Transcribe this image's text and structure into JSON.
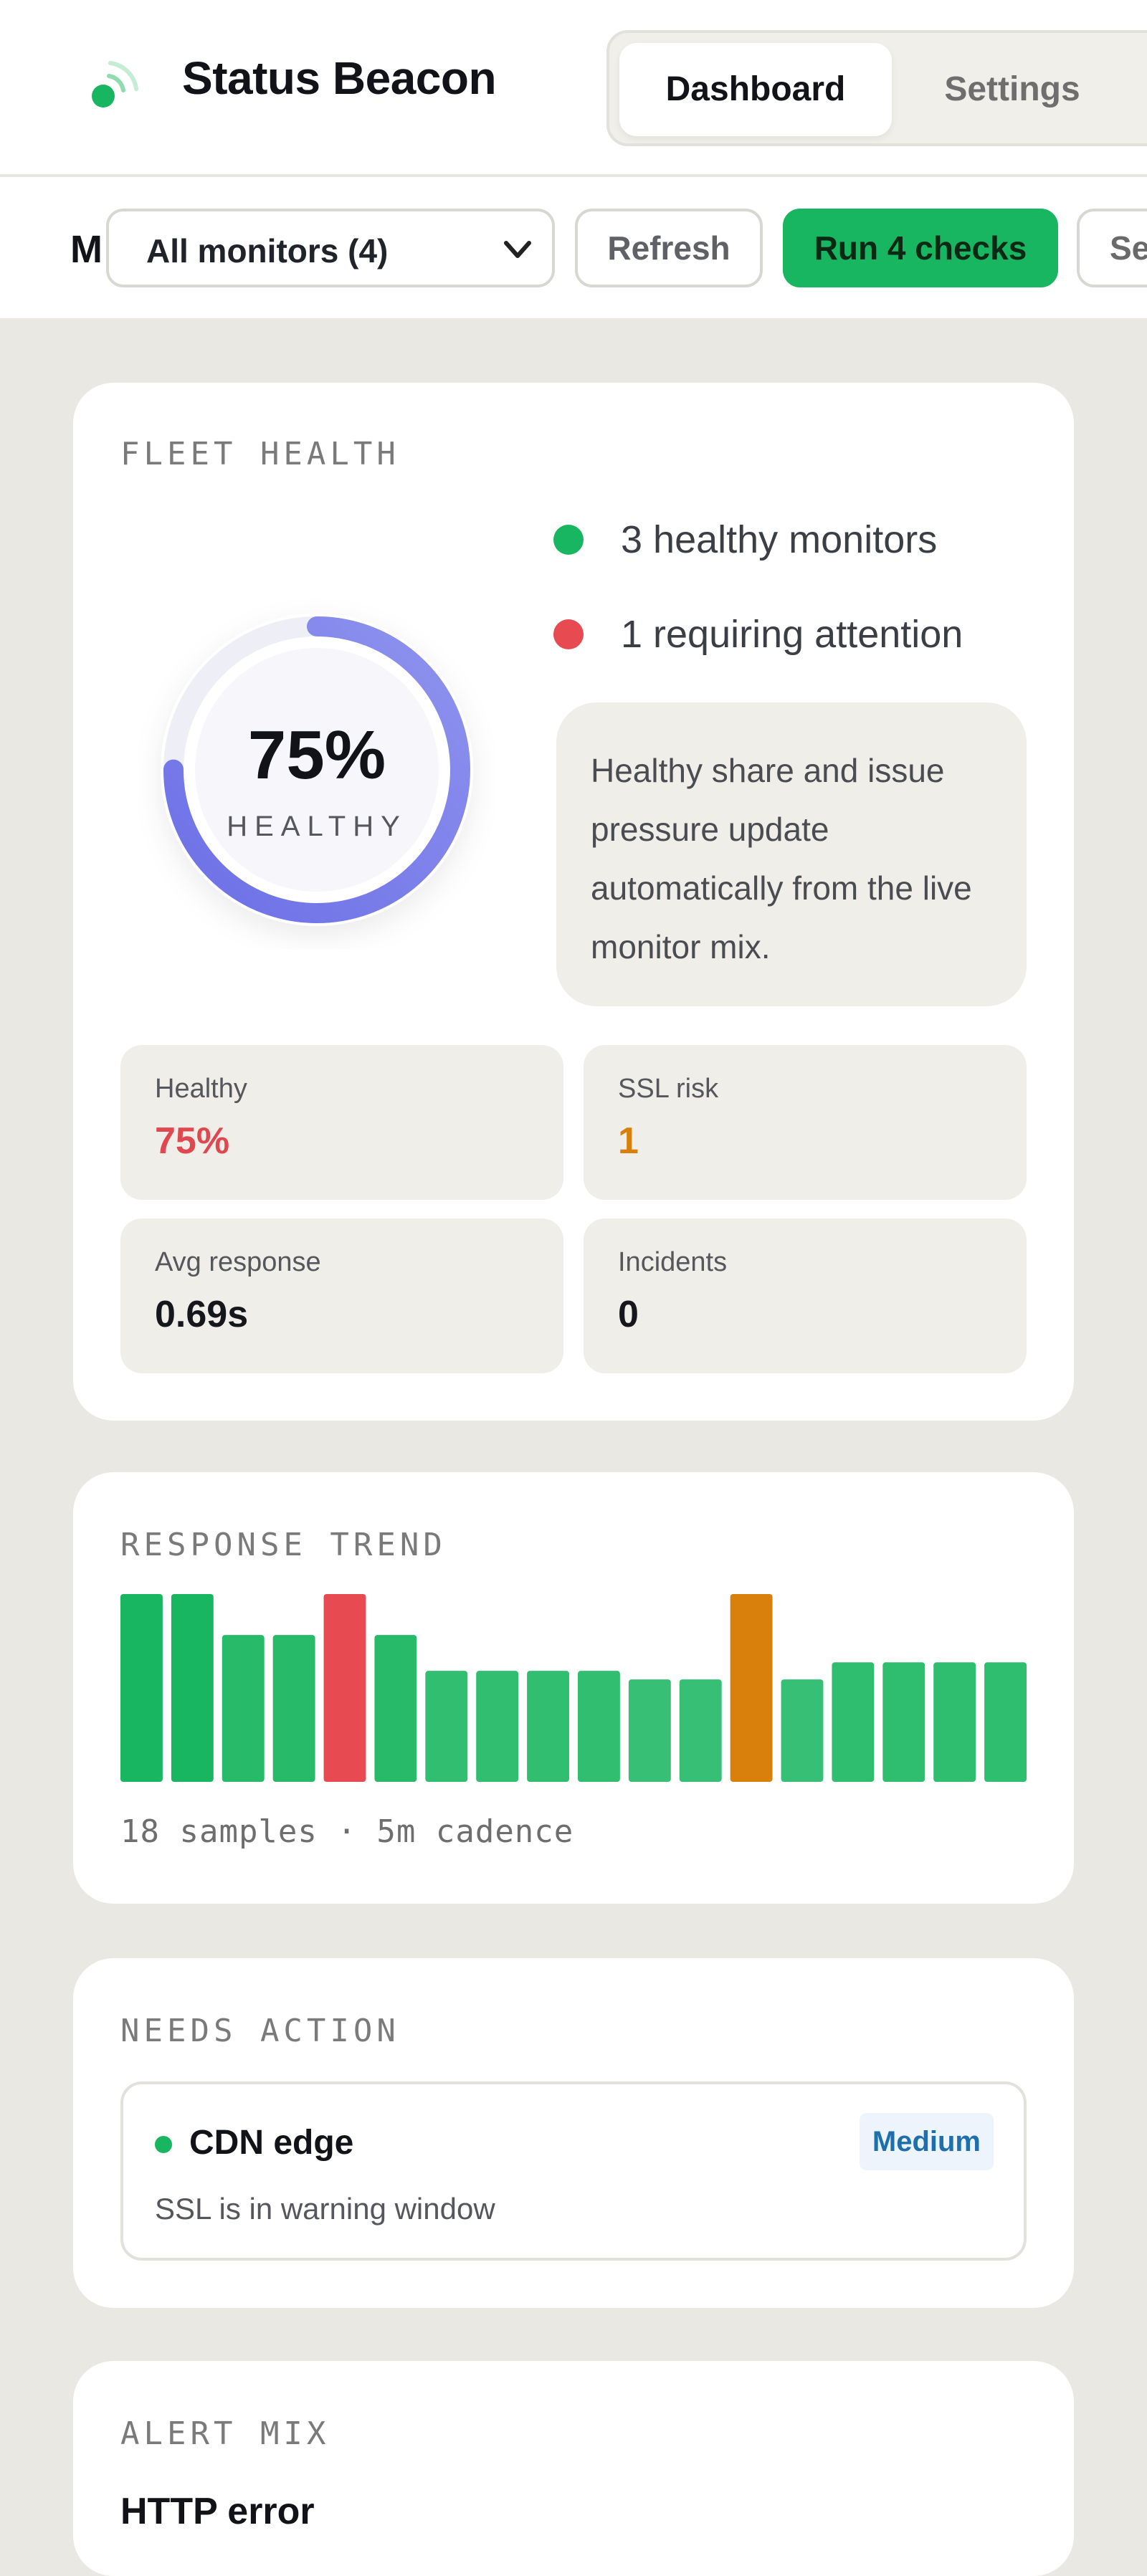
{
  "app": {
    "title": "Status Beacon"
  },
  "nav": {
    "tabs": [
      {
        "label": "Dashboard",
        "active": true
      },
      {
        "label": "Settings",
        "active": false
      }
    ]
  },
  "toolbar": {
    "lead_text": "M",
    "filter_value": "All monitors (4)",
    "refresh_label": "Refresh",
    "run_label": "Run 4 checks",
    "settings_label": "Se"
  },
  "fleet": {
    "title": "FLEET HEALTH",
    "gauge_value": "75%",
    "gauge_label": "HEALTHY",
    "healthy_fraction": 0.75,
    "legend_healthy": "3 healthy monitors",
    "legend_attention": "1 requiring attention",
    "note": "Healthy share and issue pressure update automatically from the live monitor mix.",
    "stats": [
      {
        "label": "Healthy",
        "value": "75%",
        "color": "#e0484f"
      },
      {
        "label": "SSL risk",
        "value": "1",
        "color": "#d9800c"
      },
      {
        "label": "Avg response",
        "value": "0.69s",
        "color": "#15171c"
      },
      {
        "label": "Incidents",
        "value": "0",
        "color": "#15171c"
      }
    ]
  },
  "trend": {
    "title": "RESPONSE TREND",
    "caption": "18 samples · 5m cadence",
    "colors": {
      "good": "#18b660",
      "error": "#e84a51",
      "warn": "#d9800c"
    }
  },
  "chart_data": {
    "type": "bar",
    "values": [
      1.1,
      1.1,
      0.86,
      0.86,
      1.1,
      0.86,
      0.65,
      0.65,
      0.65,
      0.65,
      0.6,
      0.6,
      1.1,
      0.6,
      0.7,
      0.7,
      0.7,
      0.7
    ],
    "status": [
      "good",
      "good",
      "good",
      "good",
      "error",
      "good",
      "good",
      "good",
      "good",
      "good",
      "good",
      "good",
      "warn",
      "good",
      "good",
      "good",
      "good",
      "good"
    ]
  },
  "needs_action": {
    "title": "NEEDS ACTION",
    "items": [
      {
        "name": "CDN edge",
        "severity": "Medium",
        "detail": "SSL is in warning window"
      }
    ]
  },
  "alert_mix": {
    "title": "ALERT MIX",
    "first_label": "HTTP error"
  },
  "colors": {
    "accent": "#18b660",
    "danger": "#e84a51",
    "gauge_start": "#8f93ee",
    "gauge_end": "#6b6fe6"
  }
}
